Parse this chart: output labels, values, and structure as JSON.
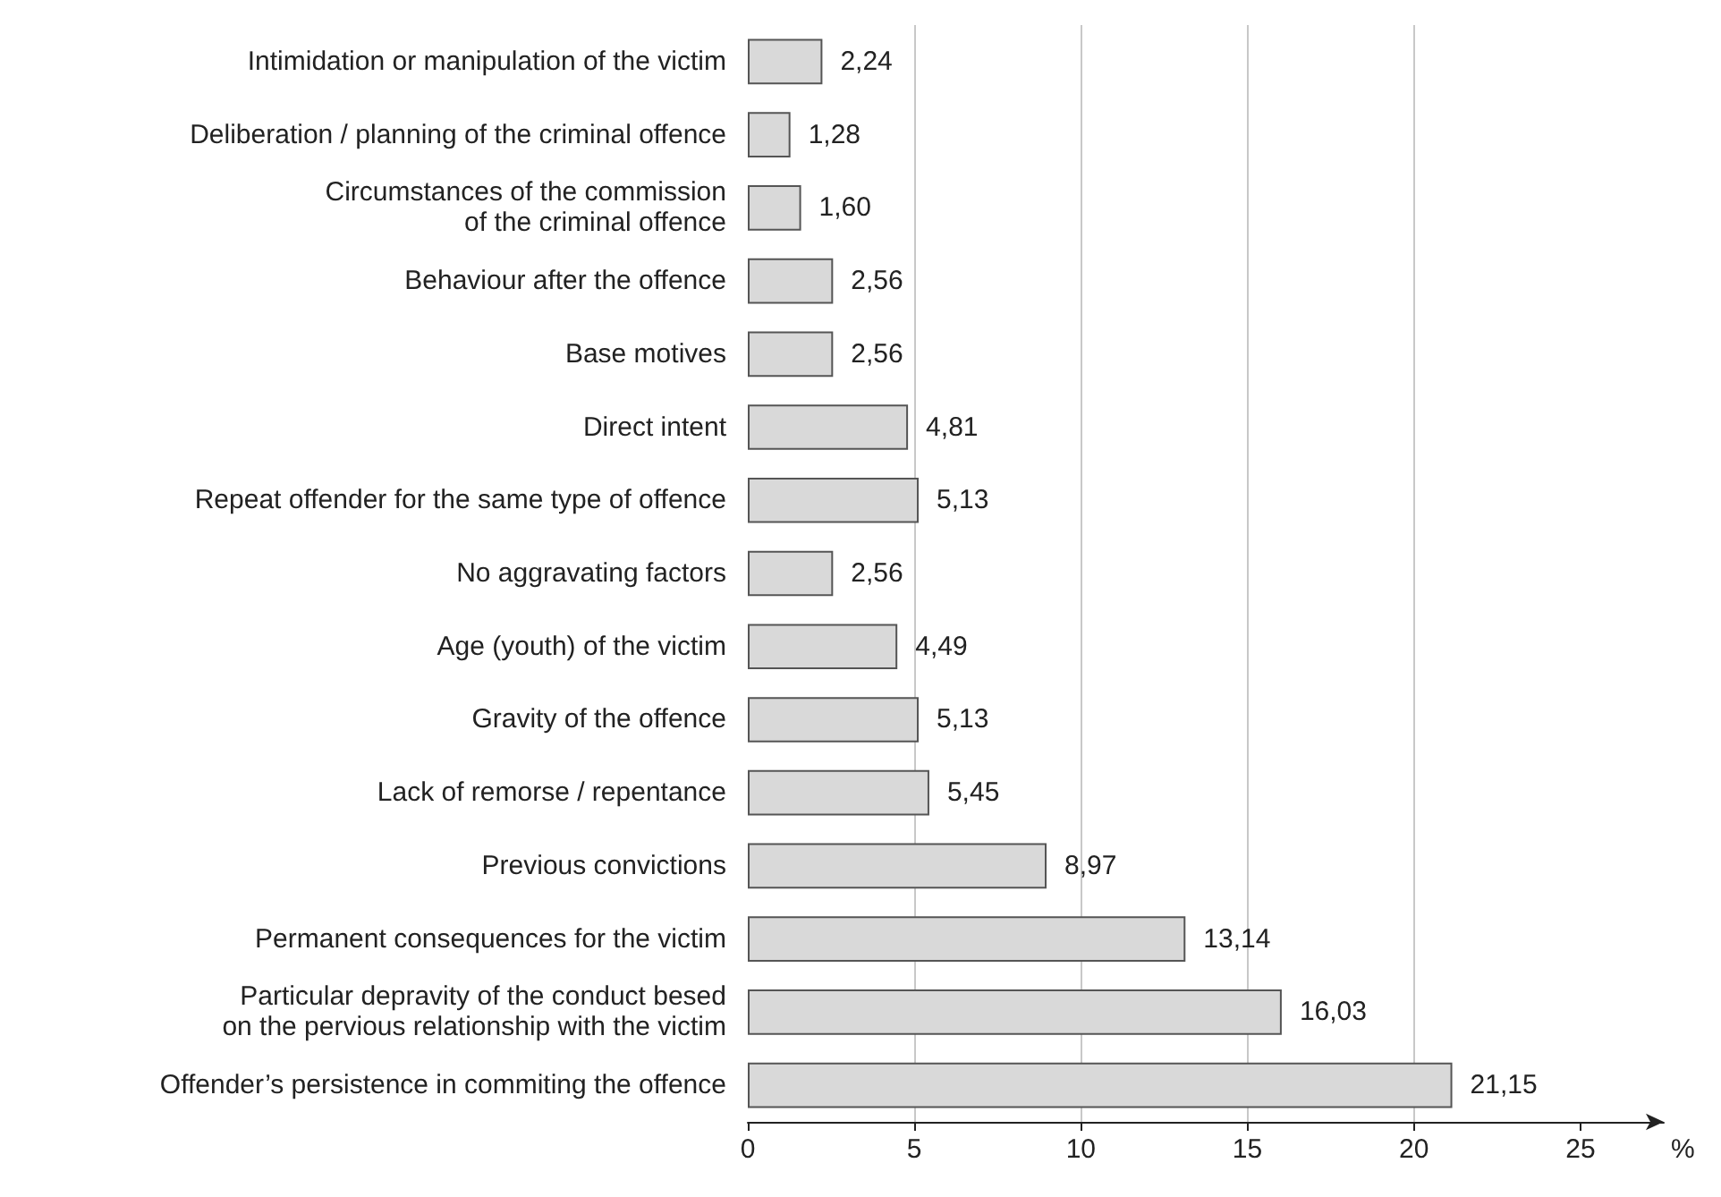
{
  "chart_data": {
    "type": "bar",
    "orientation": "horizontal",
    "xlabel": "%",
    "categories": [
      "Intimidation or manipulation of the victim",
      "Deliberation / planning of the criminal offence",
      "Circumstances of the commission\nof the criminal offence",
      "Behaviour after the offence",
      "Base motives",
      "Direct intent",
      "Repeat offender for the same type of offence",
      "No aggravating factors",
      "Age (youth) of the victim",
      "Gravity of the offence",
      "Lack of remorse / repentance",
      "Previous convictions",
      "Permanent consequences for the victim",
      "Particular depravity of the conduct besed\non the pervious relationship with the victim",
      "Offender’s persistence in commiting the offence"
    ],
    "values": [
      2.24,
      1.28,
      1.6,
      2.56,
      2.56,
      4.81,
      5.13,
      2.56,
      4.49,
      5.13,
      5.45,
      8.97,
      13.14,
      16.03,
      21.15
    ],
    "value_labels": [
      "2,24",
      "1,28",
      "1,60",
      "2,56",
      "2,56",
      "4,81",
      "5,13",
      "2,56",
      "4,49",
      "5,13",
      "5,45",
      "8,97",
      "13,14",
      "16,03",
      "21,15"
    ],
    "color": "#d9d9d9",
    "xlim": [
      0,
      27.5
    ],
    "xticks": [
      0,
      5,
      10,
      15,
      20,
      25
    ],
    "grid": "x"
  }
}
